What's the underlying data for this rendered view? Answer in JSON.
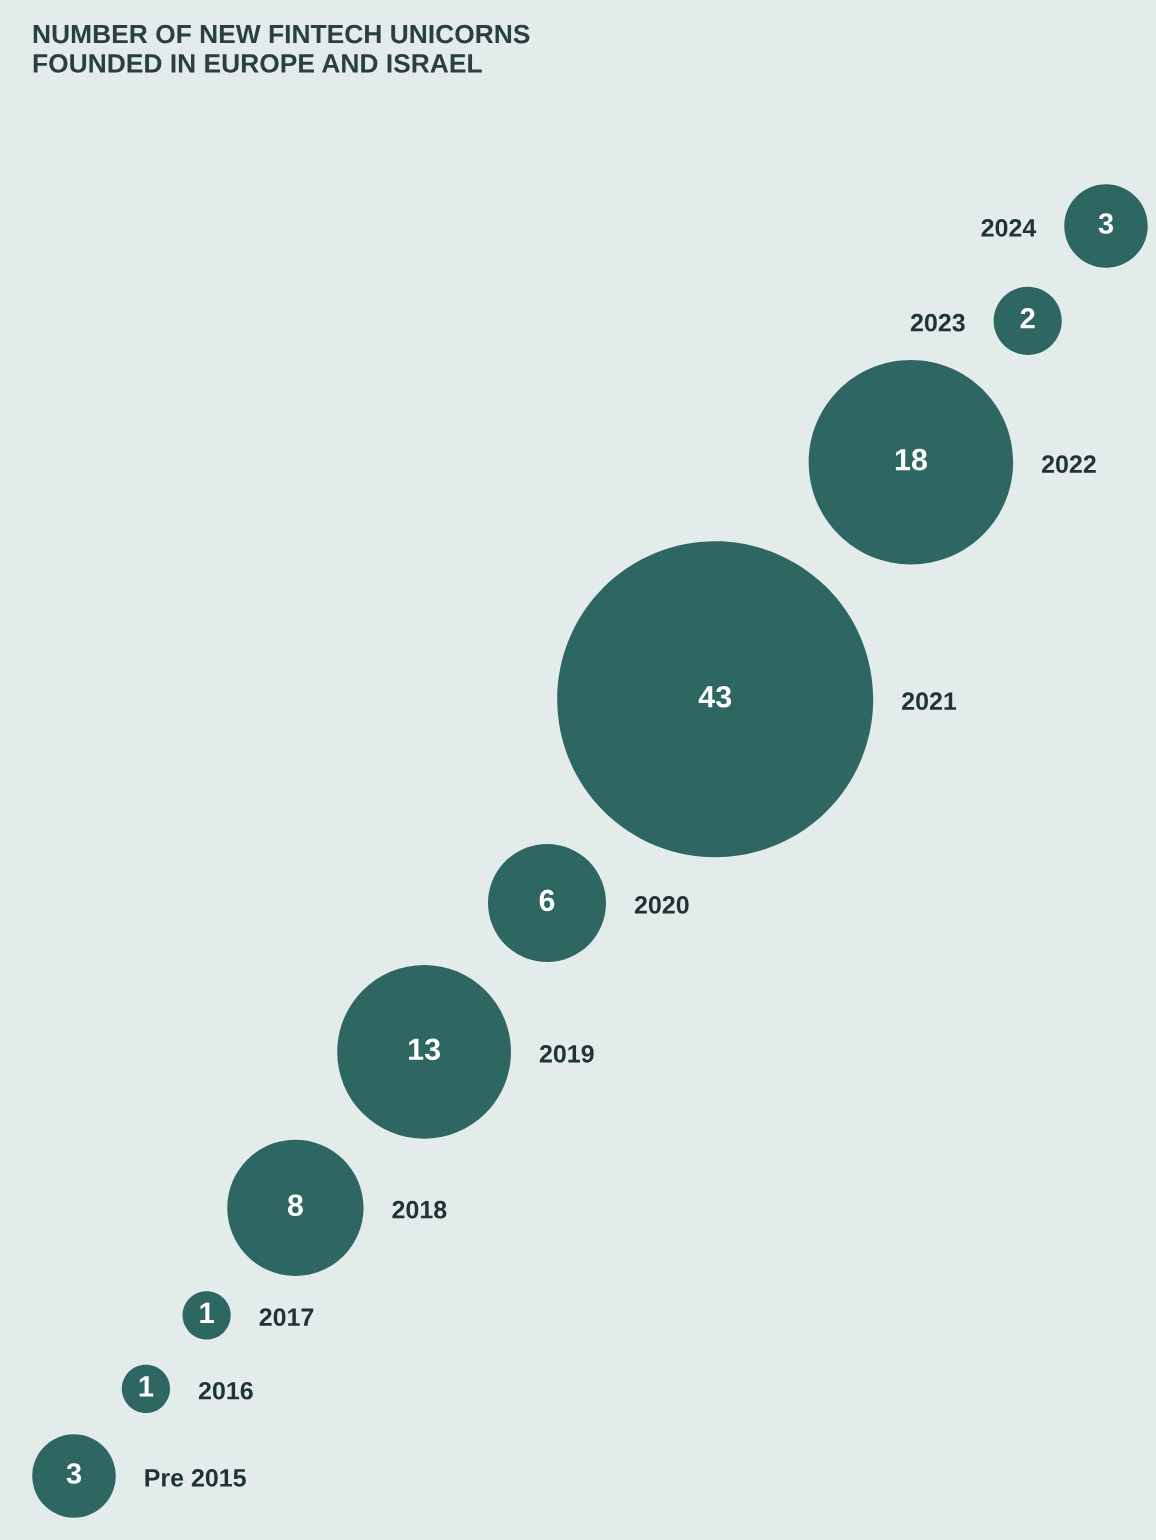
{
  "chart_data": {
    "type": "other",
    "title": "NUMBER OF NEW FINTECH UNICORNS\nFOUNDED IN EUROPE AND ISRAEL",
    "categories": [
      "Pre 2015",
      "2016",
      "2017",
      "2018",
      "2019",
      "2020",
      "2021",
      "2022",
      "2023",
      "2024"
    ],
    "values": [
      3,
      1,
      1,
      8,
      13,
      6,
      43,
      18,
      2,
      3
    ],
    "color": "#2e6761",
    "data_labels": true
  }
}
